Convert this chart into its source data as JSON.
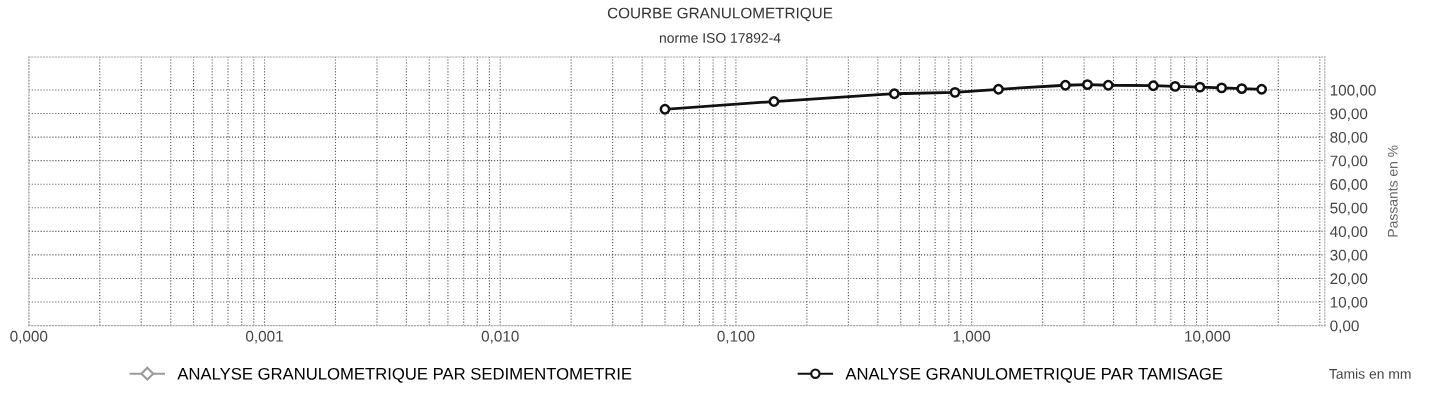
{
  "chart_data": {
    "type": "line",
    "title": "COURBE GRANULOMETRIQUE",
    "subtitle": "norme ISO 17892-4",
    "xlabel": "Tamis en mm",
    "ylabel": "Passants en %",
    "log": "x",
    "xlim": [
      0.0001,
      31.5
    ],
    "xticks": [
      {
        "value": 0.0001,
        "label": "0,000"
      },
      {
        "value": 0.001,
        "label": "0,001"
      },
      {
        "value": 0.01,
        "label": "0,010"
      },
      {
        "value": 0.1,
        "label": "0,100"
      },
      {
        "value": 1,
        "label": "1,000"
      },
      {
        "value": 10,
        "label": "10,000"
      }
    ],
    "ylim": [
      0,
      114
    ],
    "yticks": [
      {
        "value": 0,
        "label": "0,00"
      },
      {
        "value": 10,
        "label": "10,00"
      },
      {
        "value": 20,
        "label": "20,00"
      },
      {
        "value": 30,
        "label": "30,00"
      },
      {
        "value": 40,
        "label": "40,00"
      },
      {
        "value": 50,
        "label": "50,00"
      },
      {
        "value": 60,
        "label": "60,00"
      },
      {
        "value": 70,
        "label": "70,00"
      },
      {
        "value": 80,
        "label": "80,00"
      },
      {
        "value": 90,
        "label": "90,00"
      },
      {
        "value": 100,
        "label": "100,00"
      }
    ],
    "grid": true,
    "legend": "bottom",
    "line_style": "solid",
    "series": [
      {
        "name": "ANALYSE GRANULOMETRIQUE PAR SEDIMENTOMETRIE",
        "color": "#9a9a9a",
        "marker": "diamond"
      },
      {
        "name": "ANALYSE GRANULOMETRIQUE PAR TAMISAGE",
        "color": "#111111",
        "marker": "circle",
        "x": [
          0.05,
          0.145,
          0.47,
          0.85,
          1.3,
          2.5,
          3.1,
          3.8,
          5.9,
          7.3,
          9.3,
          11.5,
          14,
          17
        ],
        "values": [
          91.8,
          95.1,
          98.4,
          99,
          100.3,
          102,
          102.3,
          102,
          101.8,
          101.5,
          101.2,
          100.9,
          100.6,
          100.3
        ]
      }
    ]
  }
}
